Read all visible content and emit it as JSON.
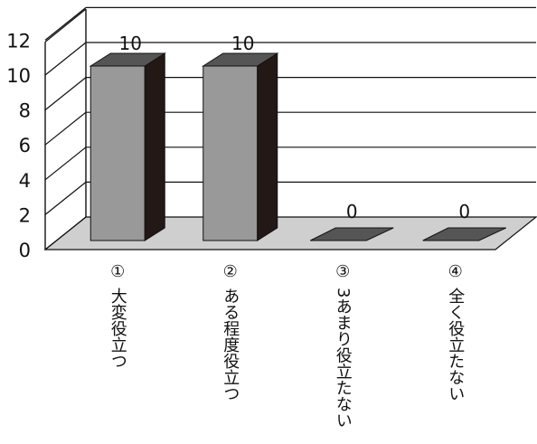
{
  "chart_data": {
    "type": "bar",
    "categories": [
      "①\n大変役立つ",
      "②\nある程度役立つ",
      "③\n3あまり役立たない",
      "④\n全く役立たない"
    ],
    "values": [
      10,
      10,
      0,
      0
    ],
    "data_labels": [
      "10",
      "10",
      "0",
      "0"
    ],
    "ylim": [
      0,
      12
    ],
    "yticks": [
      0,
      2,
      4,
      6,
      8,
      10,
      12
    ],
    "grid": true,
    "colors": {
      "bar_front": "#999999",
      "bar_side": "#231815",
      "bar_top": "#555555",
      "floor": "#cfcfcf",
      "empty_bar": "#555555"
    }
  }
}
